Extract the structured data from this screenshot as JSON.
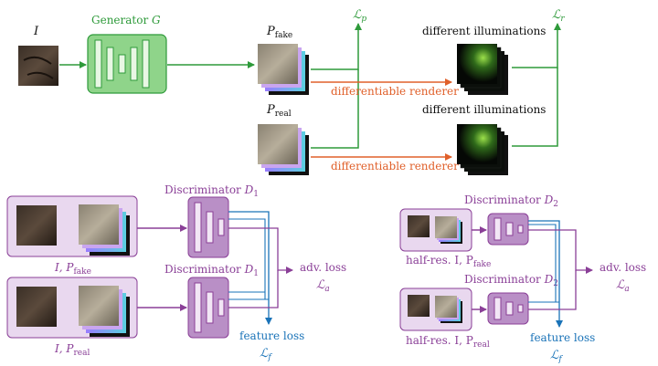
{
  "colors": {
    "green": "#2e9a3a",
    "green_box": "#8fd48a",
    "purple": "#8a3f97",
    "purple_light": "#e9d8ef",
    "purple_box": "#b98fc6",
    "blue": "#1a73b8",
    "orange": "#e0602a"
  },
  "top": {
    "input_label": "I",
    "generator_label": "Generator ",
    "generator_symbol": "G",
    "p_fake_base": "P",
    "p_fake_sub": "fake",
    "p_real_base": "P",
    "p_real_sub": "real",
    "renderer_label_1": "differentiable renderer",
    "renderer_label_2": "differentiable renderer",
    "illum_label_1": "different illuminations",
    "illum_label_2": "different illuminations",
    "loss_p_base": "ℒ",
    "loss_p_sub": "p",
    "loss_r_base": "ℒ",
    "loss_r_sub": "r"
  },
  "bottom_left": {
    "disc_label_1": "Discriminator ",
    "disc_sym_1": "D",
    "disc_sub_1": "1",
    "disc_label_2": "Discriminator ",
    "disc_sym_2": "D",
    "disc_sub_2": "1",
    "pair_fake_prefix": "I, P",
    "pair_fake_sub": "fake",
    "pair_real_prefix": "I, P",
    "pair_real_sub": "real",
    "adv_loss": "adv. loss",
    "adv_sym": "ℒ",
    "adv_sub": "a",
    "feature_loss": "feature loss",
    "feat_sym": "ℒ",
    "feat_sub": "f"
  },
  "bottom_right": {
    "disc_label_1": "Discriminator ",
    "disc_sym_1": "D",
    "disc_sub_1": "2",
    "disc_label_2": "Discriminator ",
    "disc_sym_2": "D",
    "disc_sub_2": "2",
    "pair_fake_prefix": "half-res. I, P",
    "pair_fake_sub": "fake",
    "pair_real_prefix": "half-res. I, P",
    "pair_real_sub": "real",
    "adv_loss": "adv. loss",
    "adv_sym": "ℒ",
    "adv_sub": "a",
    "feature_loss": "feature loss",
    "feat_sym": "ℒ",
    "feat_sub": "f"
  }
}
